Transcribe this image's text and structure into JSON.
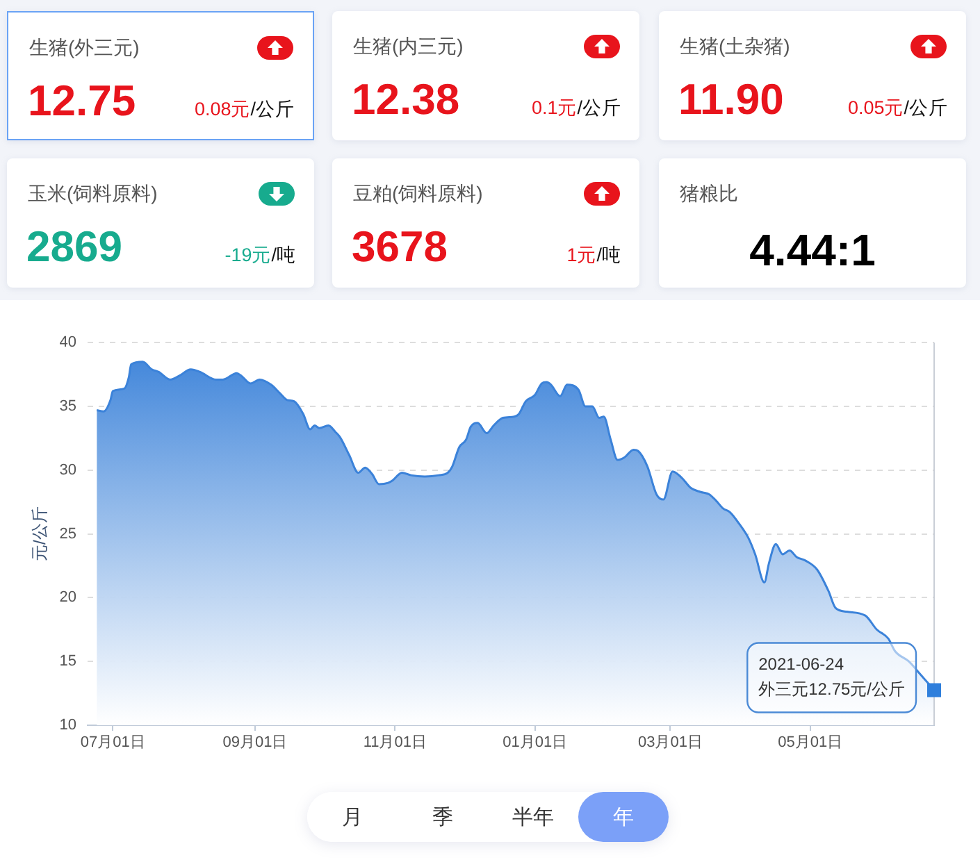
{
  "chart_data": [
    {
      "type": "other",
      "title": "生猪(外三元)",
      "annotations": [
        "12.75",
        "0.08元",
        "/公斤"
      ],
      "color": "#e8141c"
    },
    {
      "type": "other",
      "title": "生猪(内三元)",
      "annotations": [
        "12.38",
        "0.1元",
        "/公斤"
      ],
      "color": "#e8141c"
    },
    {
      "type": "other",
      "title": "生猪(土杂猪)",
      "annotations": [
        "11.90",
        "0.05元",
        "/公斤"
      ],
      "color": "#e8141c"
    },
    {
      "type": "other",
      "title": "玉米(饲料原料)",
      "annotations": [
        "2869",
        "-19元",
        "/吨"
      ],
      "color": "#17ab8e"
    },
    {
      "type": "other",
      "title": "豆粕(饲料原料)",
      "annotations": [
        "3678",
        "1元",
        "/吨"
      ],
      "color": "#e8141c"
    },
    {
      "type": "other",
      "title": "猪粮比",
      "annotations": [
        "4.44:1"
      ],
      "color": "#000000"
    },
    {
      "type": "area",
      "ylabel": "元/公斤",
      "color": "#3b82d9",
      "x": [
        "2020-06-24",
        "2020-06-27",
        "2020-06-30",
        "2020-07-01",
        "2020-07-06",
        "2020-07-08",
        "2020-07-09",
        "2020-07-14",
        "2020-07-18",
        "2020-07-21",
        "2020-07-26",
        "2020-07-30",
        "2020-08-04",
        "2020-08-08",
        "2020-08-15",
        "2020-08-18",
        "2020-08-24",
        "2020-08-26",
        "2020-08-30",
        "2020-09-03",
        "2020-09-08",
        "2020-09-12",
        "2020-09-15",
        "2020-09-18",
        "2020-09-22",
        "2020-09-25",
        "2020-09-27",
        "2020-09-29",
        "2020-10-03",
        "2020-10-06",
        "2020-10-08",
        "2020-10-12",
        "2020-10-16",
        "2020-10-19",
        "2020-10-22",
        "2020-10-25",
        "2020-10-29",
        "2020-10-31",
        "2020-11-04",
        "2020-11-08",
        "2020-11-14",
        "2020-11-20",
        "2020-11-24",
        "2020-11-26",
        "2020-11-29",
        "2020-12-02",
        "2020-12-04",
        "2020-12-07",
        "2020-12-11",
        "2020-12-14",
        "2020-12-18",
        "2020-12-23",
        "2020-12-25",
        "2020-12-28",
        "2021-01-01",
        "2021-01-04",
        "2021-01-06",
        "2021-01-08",
        "2021-01-12",
        "2021-01-15",
        "2021-01-20",
        "2021-01-23",
        "2021-01-26",
        "2021-01-29",
        "2021-01-31",
        "2021-02-03",
        "2021-02-06",
        "2021-02-09",
        "2021-02-13",
        "2021-02-15",
        "2021-02-19",
        "2021-02-23",
        "2021-02-26",
        "2021-03-02",
        "2021-03-06",
        "2021-03-10",
        "2021-03-14",
        "2021-03-18",
        "2021-03-21",
        "2021-03-24",
        "2021-03-27",
        "2021-03-31",
        "2021-04-04",
        "2021-04-07",
        "2021-04-11",
        "2021-04-13",
        "2021-04-16",
        "2021-04-19",
        "2021-04-22",
        "2021-04-25",
        "2021-04-29",
        "2021-05-04",
        "2021-05-09",
        "2021-05-12",
        "2021-05-17",
        "2021-05-25",
        "2021-05-30",
        "2021-06-04",
        "2021-06-07",
        "2021-06-13",
        "2021-06-17",
        "2021-06-24"
      ],
      "values": [
        34.7,
        34.6,
        35.5,
        36.2,
        36.4,
        37.3,
        38.3,
        38.5,
        37.9,
        37.7,
        37.1,
        37.4,
        37.9,
        37.7,
        37.1,
        37.1,
        37.6,
        37.4,
        36.8,
        37.1,
        36.7,
        36.0,
        35.5,
        35.4,
        34.4,
        33.2,
        33.5,
        33.3,
        33.5,
        33.0,
        32.6,
        31.2,
        29.8,
        30.2,
        29.7,
        28.9,
        29.0,
        29.2,
        29.8,
        29.6,
        29.5,
        29.6,
        29.8,
        30.3,
        31.8,
        32.4,
        33.4,
        33.7,
        32.9,
        33.5,
        34.1,
        34.2,
        34.4,
        35.4,
        35.9,
        36.8,
        36.9,
        36.7,
        35.8,
        36.7,
        36.3,
        35.0,
        35.0,
        34.1,
        34.2,
        32.4,
        30.8,
        31.0,
        31.6,
        31.5,
        30.3,
        28.1,
        27.7,
        29.9,
        29.4,
        28.6,
        28.3,
        28.1,
        27.6,
        27.0,
        26.7,
        25.8,
        24.7,
        23.4,
        21.2,
        22.7,
        24.2,
        23.4,
        23.7,
        23.2,
        22.9,
        22.2,
        20.5,
        19.2,
        18.9,
        18.6,
        17.5,
        16.8,
        15.8,
        15.0,
        14.2,
        12.75
      ],
      "xlim": [
        "2020-06-20",
        "2021-06-24"
      ],
      "xticks": [
        {
          "value": "2020-07-01",
          "label": "07月01日"
        },
        {
          "value": "2020-09-01",
          "label": "09月01日"
        },
        {
          "value": "2020-11-01",
          "label": "11月01日"
        },
        {
          "value": "2021-01-01",
          "label": "01月01日"
        },
        {
          "value": "2021-03-01",
          "label": "03月01日"
        },
        {
          "value": "2021-05-01",
          "label": "05月01日"
        }
      ],
      "ylim": [
        10,
        40
      ],
      "yticks": [
        10,
        15,
        20,
        25,
        30,
        35,
        40
      ],
      "grid": "y",
      "legend": false,
      "ref_lines": [
        {
          "axis": "x",
          "value": "2021-06-24",
          "color": "#c9ced6"
        }
      ],
      "annotations": [
        {
          "text": "2021-06-24\n外三元12.75元/公斤",
          "x": "2021-06-24",
          "y": 12.75
        }
      ]
    },
    {
      "type": "other",
      "categories": [
        "月",
        "季",
        "半年",
        "年"
      ],
      "colors": [
        "#ffffff",
        "#ffffff",
        "#ffffff",
        "#7ba0f8"
      ]
    }
  ]
}
